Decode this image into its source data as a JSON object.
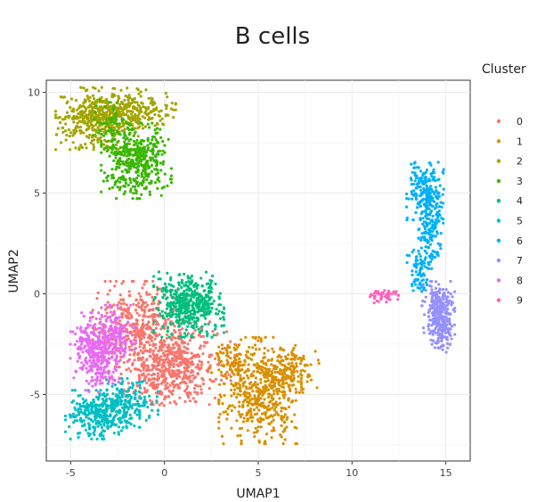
{
  "chart_data": {
    "type": "scatter",
    "title": "B cells",
    "xlabel": "UMAP1",
    "ylabel": "UMAP2",
    "xlim": [
      -6.3,
      16.3
    ],
    "ylim": [
      -8.3,
      10.6
    ],
    "xticks": [
      -5,
      0,
      5,
      10,
      15
    ],
    "yticks": [
      -5,
      0,
      5,
      10
    ],
    "grid": true,
    "legend": {
      "title": "Cluster",
      "position": "right",
      "entries": [
        "0",
        "1",
        "2",
        "3",
        "4",
        "5",
        "6",
        "7",
        "8",
        "9"
      ]
    },
    "series": [
      {
        "name": "0",
        "color": "#F8766D",
        "regions": [
          {
            "cx": -1.4,
            "cy": -1.8,
            "sx": 1.1,
            "sy": 1.1,
            "n": 420
          },
          {
            "cx": 0.9,
            "cy": -3.3,
            "sx": 1.3,
            "sy": 1.0,
            "n": 360
          },
          {
            "cx": -0.2,
            "cy": -4.2,
            "sx": 0.9,
            "sy": 0.7,
            "n": 160
          }
        ]
      },
      {
        "name": "1",
        "color": "#D89000",
        "regions": [
          {
            "cx": 5.1,
            "cy": -4.8,
            "sx": 1.0,
            "sy": 1.2,
            "n": 520
          },
          {
            "cx": 6.7,
            "cy": -3.8,
            "sx": 0.7,
            "sy": 0.5,
            "n": 120
          },
          {
            "cx": 3.4,
            "cy": -3.2,
            "sx": 0.45,
            "sy": 0.45,
            "n": 60
          }
        ]
      },
      {
        "name": "2",
        "color": "#A3A500",
        "regions": [
          {
            "cx": -3.6,
            "cy": 8.7,
            "sx": 1.0,
            "sy": 0.7,
            "n": 420
          },
          {
            "cx": -1.6,
            "cy": 9.2,
            "sx": 1.0,
            "sy": 0.45,
            "n": 200
          }
        ]
      },
      {
        "name": "3",
        "color": "#39B600",
        "regions": [
          {
            "cx": -1.5,
            "cy": 6.6,
            "sx": 0.85,
            "sy": 0.85,
            "n": 420
          },
          {
            "cx": -2.7,
            "cy": 8.3,
            "sx": 0.5,
            "sy": 0.6,
            "n": 60
          }
        ]
      },
      {
        "name": "4",
        "color": "#00BF7D",
        "regions": [
          {
            "cx": 1.3,
            "cy": -0.5,
            "sx": 0.85,
            "sy": 0.75,
            "n": 460
          }
        ]
      },
      {
        "name": "5",
        "color": "#00BFC4",
        "regions": [
          {
            "cx": -3.3,
            "cy": -6.0,
            "sx": 0.9,
            "sy": 0.55,
            "n": 320
          },
          {
            "cx": -2.1,
            "cy": -5.3,
            "sx": 0.8,
            "sy": 0.5,
            "n": 140
          }
        ]
      },
      {
        "name": "6",
        "color": "#00B0F6",
        "regions": [
          {
            "cx": 13.9,
            "cy": 5.1,
            "sx": 0.45,
            "sy": 0.65,
            "n": 200
          },
          {
            "cx": 14.2,
            "cy": 3.2,
            "sx": 0.3,
            "sy": 0.8,
            "n": 140
          },
          {
            "cx": 13.6,
            "cy": 1.2,
            "sx": 0.3,
            "sy": 0.6,
            "n": 80
          }
        ]
      },
      {
        "name": "7",
        "color": "#9590FF",
        "regions": [
          {
            "cx": 14.6,
            "cy": -0.7,
            "sx": 0.4,
            "sy": 0.6,
            "n": 200
          },
          {
            "cx": 14.8,
            "cy": -1.8,
            "sx": 0.3,
            "sy": 0.5,
            "n": 120
          }
        ]
      },
      {
        "name": "8",
        "color": "#E76BF3",
        "regions": [
          {
            "cx": -3.7,
            "cy": -2.7,
            "sx": 0.6,
            "sy": 0.8,
            "n": 280
          },
          {
            "cx": -2.6,
            "cy": -2.1,
            "sx": 0.5,
            "sy": 0.7,
            "n": 140
          },
          {
            "cx": -3.5,
            "cy": -4.0,
            "sx": 0.5,
            "sy": 0.4,
            "n": 60
          }
        ]
      },
      {
        "name": "9",
        "color": "#FF62BC",
        "regions": [
          {
            "cx": 11.7,
            "cy": -0.1,
            "sx": 0.35,
            "sy": 0.18,
            "n": 50
          }
        ]
      }
    ]
  }
}
